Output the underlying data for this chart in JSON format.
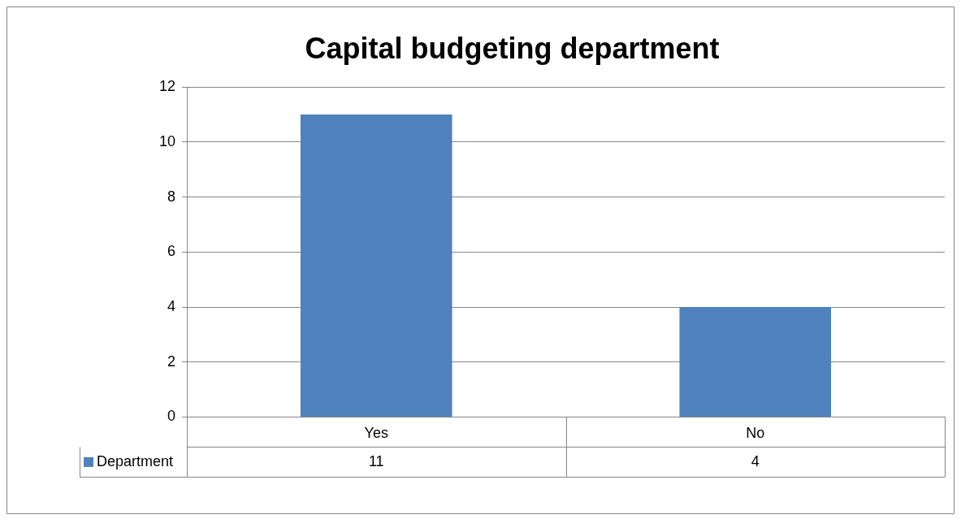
{
  "chart_data": {
    "type": "bar",
    "title": "Capital budgeting department",
    "categories": [
      "Yes",
      "No"
    ],
    "series": [
      {
        "name": "Department",
        "color": "#4f81bd",
        "values": [
          11,
          4
        ]
      }
    ],
    "ylim": [
      0,
      12
    ],
    "yticks": [
      0,
      2,
      4,
      6,
      8,
      10,
      12
    ],
    "grid": "y",
    "legend": "bottom",
    "data_labels": true
  }
}
